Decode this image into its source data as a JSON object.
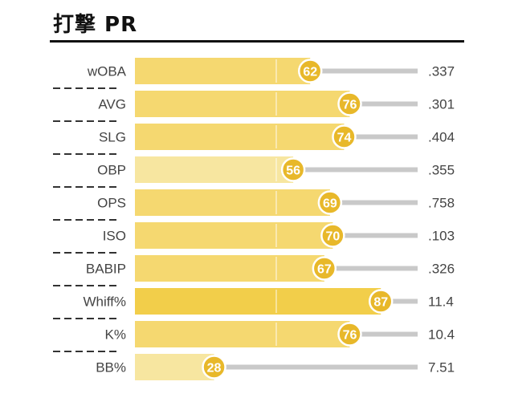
{
  "title": "打撃 PR",
  "colors": {
    "bar_light": "#F7E6A0",
    "bar_mid": "#F5D870",
    "bar_strong": "#F2CE4A",
    "badge": "#E8B82A",
    "track": "#C9C9C9",
    "text": "#444444"
  },
  "chart_data": {
    "type": "bar",
    "title": "打撃 PR",
    "orientation": "horizontal",
    "xlim": [
      0,
      100
    ],
    "categories": [
      "wOBA",
      "AVG",
      "SLG",
      "OBP",
      "OPS",
      "ISO",
      "BABIP",
      "Whiff%",
      "K%",
      "BB%"
    ],
    "series": [
      {
        "values": [
          62,
          76,
          74,
          56,
          69,
          70,
          67,
          87,
          76,
          28
        ]
      }
    ],
    "stat_values": [
      ".337",
      ".301",
      ".404",
      ".355",
      ".758",
      ".103",
      ".326",
      "11.4",
      "10.4",
      "7.51"
    ]
  }
}
